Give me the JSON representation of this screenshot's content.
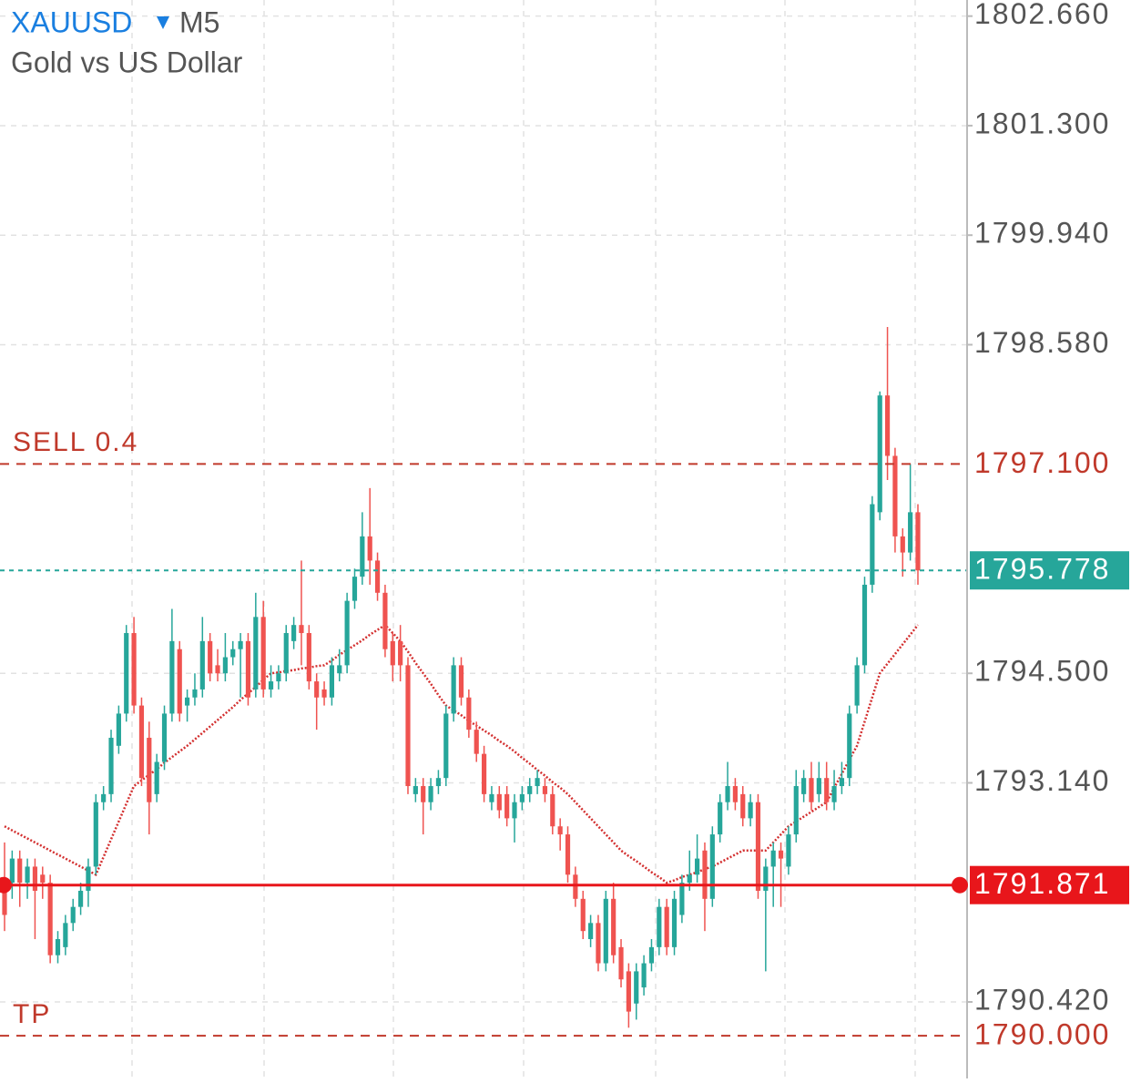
{
  "header": {
    "symbol": "XAUUSD",
    "timeframe": "M5",
    "description": "Gold vs US Dollar"
  },
  "chart_data": {
    "type": "candlestick",
    "ylim": [
      1789.47,
      1802.86
    ],
    "yticks": [
      {
        "value": 1802.66,
        "label": "1802.660"
      },
      {
        "value": 1801.3,
        "label": "1801.300"
      },
      {
        "value": 1799.94,
        "label": "1799.940"
      },
      {
        "value": 1798.58,
        "label": "1798.580"
      },
      {
        "value": 1794.5,
        "label": "1794.500"
      },
      {
        "value": 1793.14,
        "label": "1793.140"
      },
      {
        "value": 1790.42,
        "label": "1790.420"
      }
    ],
    "grid": true,
    "up_color": "#26a69a",
    "down_color": "#ef5350",
    "candles": [
      [
        1791.8,
        1792.4,
        1791.3,
        1791.5
      ],
      [
        1791.9,
        1792.3,
        1791.7,
        1792.2
      ],
      [
        1792.2,
        1792.3,
        1791.6,
        1791.9
      ],
      [
        1791.9,
        1792.2,
        1791.7,
        1792.1
      ],
      [
        1792.1,
        1792.2,
        1791.2,
        1791.8
      ],
      [
        1792.0,
        1792.1,
        1791.7,
        1791.9
      ],
      [
        1791.9,
        1792.0,
        1790.9,
        1791.0
      ],
      [
        1791.0,
        1791.3,
        1790.9,
        1791.2
      ],
      [
        1791.1,
        1791.5,
        1791.0,
        1791.4
      ],
      [
        1791.4,
        1791.7,
        1791.3,
        1791.6
      ],
      [
        1791.6,
        1791.9,
        1791.5,
        1791.8
      ],
      [
        1791.8,
        1792.2,
        1791.6,
        1792.1
      ],
      [
        1792.1,
        1793.0,
        1792.0,
        1792.9
      ],
      [
        1792.9,
        1793.1,
        1792.8,
        1793.0
      ],
      [
        1793.0,
        1793.8,
        1792.9,
        1793.7
      ],
      [
        1793.6,
        1794.1,
        1793.5,
        1794.0
      ],
      [
        1794.0,
        1795.1,
        1793.9,
        1795.0
      ],
      [
        1795.0,
        1795.2,
        1794.0,
        1794.1
      ],
      [
        1794.1,
        1794.2,
        1793.1,
        1793.2
      ],
      [
        1793.7,
        1793.9,
        1792.5,
        1792.9
      ],
      [
        1793.0,
        1793.5,
        1792.9,
        1793.4
      ],
      [
        1793.4,
        1794.1,
        1793.3,
        1794.0
      ],
      [
        1794.0,
        1795.3,
        1793.9,
        1794.9
      ],
      [
        1794.8,
        1794.9,
        1793.9,
        1794.0
      ],
      [
        1794.1,
        1794.3,
        1793.9,
        1794.2
      ],
      [
        1794.2,
        1794.5,
        1794.1,
        1794.3
      ],
      [
        1794.3,
        1795.2,
        1794.2,
        1794.9
      ],
      [
        1794.9,
        1795.0,
        1794.4,
        1794.5
      ],
      [
        1794.6,
        1794.8,
        1794.4,
        1794.5
      ],
      [
        1794.5,
        1795.0,
        1794.4,
        1794.7
      ],
      [
        1794.7,
        1794.9,
        1794.6,
        1794.8
      ],
      [
        1794.8,
        1795.0,
        1794.2,
        1794.9
      ],
      [
        1794.9,
        1795.0,
        1794.1,
        1794.2
      ],
      [
        1794.3,
        1795.5,
        1794.2,
        1795.2
      ],
      [
        1795.2,
        1795.4,
        1794.2,
        1794.3
      ],
      [
        1794.3,
        1794.6,
        1794.2,
        1794.4
      ],
      [
        1794.4,
        1794.6,
        1794.3,
        1794.5
      ],
      [
        1794.5,
        1795.1,
        1794.4,
        1795.0
      ],
      [
        1794.9,
        1795.2,
        1794.8,
        1795.1
      ],
      [
        1795.1,
        1795.9,
        1794.6,
        1795.0
      ],
      [
        1795.0,
        1795.1,
        1794.3,
        1794.4
      ],
      [
        1794.4,
        1794.5,
        1793.8,
        1794.2
      ],
      [
        1794.3,
        1794.4,
        1794.1,
        1794.2
      ],
      [
        1794.2,
        1794.7,
        1794.1,
        1794.6
      ],
      [
        1794.5,
        1794.8,
        1794.4,
        1794.6
      ],
      [
        1794.6,
        1795.5,
        1794.5,
        1795.4
      ],
      [
        1795.4,
        1795.8,
        1795.3,
        1795.7
      ],
      [
        1795.7,
        1796.5,
        1795.6,
        1796.2
      ],
      [
        1796.2,
        1796.8,
        1795.6,
        1795.9
      ],
      [
        1795.9,
        1796.0,
        1795.4,
        1795.5
      ],
      [
        1795.5,
        1795.6,
        1794.7,
        1794.8
      ],
      [
        1794.9,
        1795.0,
        1794.4,
        1794.6
      ],
      [
        1794.9,
        1795.1,
        1794.4,
        1794.6
      ],
      [
        1794.6,
        1794.7,
        1793.0,
        1793.1
      ],
      [
        1793.0,
        1793.2,
        1792.9,
        1793.1
      ],
      [
        1793.1,
        1793.2,
        1792.5,
        1792.9
      ],
      [
        1792.9,
        1793.2,
        1792.8,
        1793.1
      ],
      [
        1793.1,
        1793.3,
        1793.0,
        1793.2
      ],
      [
        1793.2,
        1794.1,
        1793.1,
        1794.0
      ],
      [
        1794.0,
        1794.7,
        1793.9,
        1794.6
      ],
      [
        1794.6,
        1794.7,
        1794.1,
        1794.2
      ],
      [
        1794.2,
        1794.3,
        1793.7,
        1793.8
      ],
      [
        1793.8,
        1793.9,
        1793.4,
        1793.5
      ],
      [
        1793.5,
        1793.6,
        1792.9,
        1793.0
      ],
      [
        1792.9,
        1793.1,
        1792.8,
        1793.0
      ],
      [
        1793.0,
        1793.1,
        1792.7,
        1792.8
      ],
      [
        1793.0,
        1793.1,
        1792.6,
        1792.7
      ],
      [
        1792.7,
        1793.0,
        1792.4,
        1792.9
      ],
      [
        1792.9,
        1793.1,
        1792.8,
        1793.0
      ],
      [
        1793.0,
        1793.2,
        1792.9,
        1793.1
      ],
      [
        1793.1,
        1793.3,
        1793.0,
        1793.2
      ],
      [
        1793.1,
        1793.2,
        1792.9,
        1793.0
      ],
      [
        1793.0,
        1793.1,
        1792.5,
        1792.6
      ],
      [
        1792.6,
        1792.7,
        1792.3,
        1792.5
      ],
      [
        1792.5,
        1792.6,
        1791.9,
        1792.0
      ],
      [
        1792.0,
        1792.1,
        1791.6,
        1791.7
      ],
      [
        1791.7,
        1791.8,
        1791.2,
        1791.3
      ],
      [
        1791.2,
        1791.5,
        1791.1,
        1791.4
      ],
      [
        1791.4,
        1791.5,
        1790.8,
        1790.9
      ],
      [
        1790.9,
        1791.8,
        1790.8,
        1791.7
      ],
      [
        1791.7,
        1791.9,
        1790.9,
        1791.0
      ],
      [
        1791.1,
        1791.2,
        1790.6,
        1790.7
      ],
      [
        1790.8,
        1790.9,
        1790.1,
        1790.3
      ],
      [
        1790.4,
        1790.9,
        1790.2,
        1790.8
      ],
      [
        1790.6,
        1791.0,
        1790.5,
        1790.9
      ],
      [
        1790.9,
        1791.2,
        1790.8,
        1791.1
      ],
      [
        1791.1,
        1791.7,
        1791.0,
        1791.6
      ],
      [
        1791.6,
        1791.7,
        1791.0,
        1791.1
      ],
      [
        1791.1,
        1791.8,
        1791.0,
        1791.7
      ],
      [
        1791.5,
        1792.0,
        1791.4,
        1791.9
      ],
      [
        1791.9,
        1792.3,
        1791.8,
        1792.0
      ],
      [
        1792.0,
        1792.5,
        1791.9,
        1792.2
      ],
      [
        1792.3,
        1792.4,
        1791.3,
        1791.7
      ],
      [
        1791.7,
        1792.6,
        1791.6,
        1792.5
      ],
      [
        1792.5,
        1793.0,
        1792.4,
        1792.9
      ],
      [
        1792.9,
        1793.4,
        1792.8,
        1793.1
      ],
      [
        1793.1,
        1793.2,
        1792.8,
        1792.9
      ],
      [
        1793.0,
        1793.1,
        1792.6,
        1792.7
      ],
      [
        1792.7,
        1793.0,
        1792.6,
        1792.9
      ],
      [
        1792.9,
        1793.0,
        1791.7,
        1791.8
      ],
      [
        1791.8,
        1792.2,
        1790.8,
        1792.1
      ],
      [
        1792.1,
        1792.4,
        1791.6,
        1792.3
      ],
      [
        1792.3,
        1792.4,
        1791.6,
        1792.2
      ],
      [
        1792.1,
        1792.6,
        1792.0,
        1792.5
      ],
      [
        1792.5,
        1793.3,
        1792.4,
        1793.1
      ],
      [
        1793.0,
        1793.3,
        1792.9,
        1793.2
      ],
      [
        1793.2,
        1793.4,
        1792.8,
        1792.9
      ],
      [
        1793.0,
        1793.4,
        1792.9,
        1793.2
      ],
      [
        1793.2,
        1793.4,
        1792.8,
        1792.9
      ],
      [
        1792.9,
        1793.3,
        1792.8,
        1793.1
      ],
      [
        1793.1,
        1793.4,
        1793.0,
        1793.2
      ],
      [
        1793.2,
        1794.1,
        1793.1,
        1794.0
      ],
      [
        1794.1,
        1794.7,
        1794.0,
        1794.6
      ],
      [
        1794.6,
        1795.7,
        1794.5,
        1795.6
      ],
      [
        1795.6,
        1796.7,
        1795.5,
        1796.6
      ],
      [
        1796.5,
        1798.0,
        1796.4,
        1797.95
      ],
      [
        1797.95,
        1798.8,
        1796.9,
        1797.2
      ],
      [
        1797.2,
        1797.3,
        1796.0,
        1796.2
      ],
      [
        1796.2,
        1796.3,
        1795.7,
        1796.0
      ],
      [
        1796.0,
        1797.1,
        1795.9,
        1796.5
      ],
      [
        1796.5,
        1796.6,
        1795.6,
        1795.778
      ]
    ],
    "ma": {
      "color": "#d32f2f",
      "values": [
        1792.6,
        1792.55,
        1792.5,
        1792.45,
        1792.4,
        1792.35,
        1792.3,
        1792.25,
        1792.2,
        1792.15,
        1792.1,
        1792.05,
        1792.0,
        1792.22,
        1792.44,
        1792.66,
        1792.88,
        1793.1,
        1793.17,
        1793.24,
        1793.31,
        1793.39,
        1793.46,
        1793.53,
        1793.6,
        1793.68,
        1793.76,
        1793.84,
        1793.92,
        1794.0,
        1794.08,
        1794.17,
        1794.25,
        1794.33,
        1794.42,
        1794.5,
        1794.51,
        1794.53,
        1794.54,
        1794.56,
        1794.57,
        1794.59,
        1794.6,
        1794.66,
        1794.73,
        1794.79,
        1794.85,
        1794.91,
        1794.98,
        1795.04,
        1795.1,
        1795.0,
        1794.9,
        1794.77,
        1794.63,
        1794.5,
        1794.37,
        1794.23,
        1794.1,
        1794.04,
        1793.98,
        1793.91,
        1793.85,
        1793.79,
        1793.73,
        1793.66,
        1793.6,
        1793.53,
        1793.45,
        1793.38,
        1793.3,
        1793.23,
        1793.15,
        1793.08,
        1793.0,
        1792.9,
        1792.8,
        1792.7,
        1792.6,
        1792.5,
        1792.4,
        1792.3,
        1792.23,
        1792.17,
        1792.1,
        1792.03,
        1791.97,
        1791.9,
        1791.93,
        1791.97,
        1792.0,
        1792.03,
        1792.07,
        1792.1,
        1792.15,
        1792.2,
        1792.25,
        1792.3,
        1792.3,
        1792.3,
        1792.3,
        1792.4,
        1792.5,
        1792.6,
        1792.66,
        1792.72,
        1792.78,
        1792.84,
        1792.9,
        1793.08,
        1793.25,
        1793.43,
        1793.6,
        1793.9,
        1794.2,
        1794.5,
        1794.62,
        1794.74,
        1794.86,
        1794.98,
        1795.1
      ]
    },
    "levels": [
      {
        "name": "SELL 0.4",
        "value": 1797.1,
        "value_label": "1797.100",
        "color": "#c0392b",
        "style": "dashed"
      },
      {
        "value": 1795.778,
        "value_label": "1795.778",
        "color": "#26a69a",
        "style": "dotted"
      },
      {
        "value": 1791.871,
        "value_label": "1791.871",
        "color": "#e8161b",
        "style": "solid"
      },
      {
        "name": "TP",
        "value": 1790.0,
        "value_label": "1790.000",
        "color": "#c0392b",
        "style": "dashed"
      }
    ]
  }
}
